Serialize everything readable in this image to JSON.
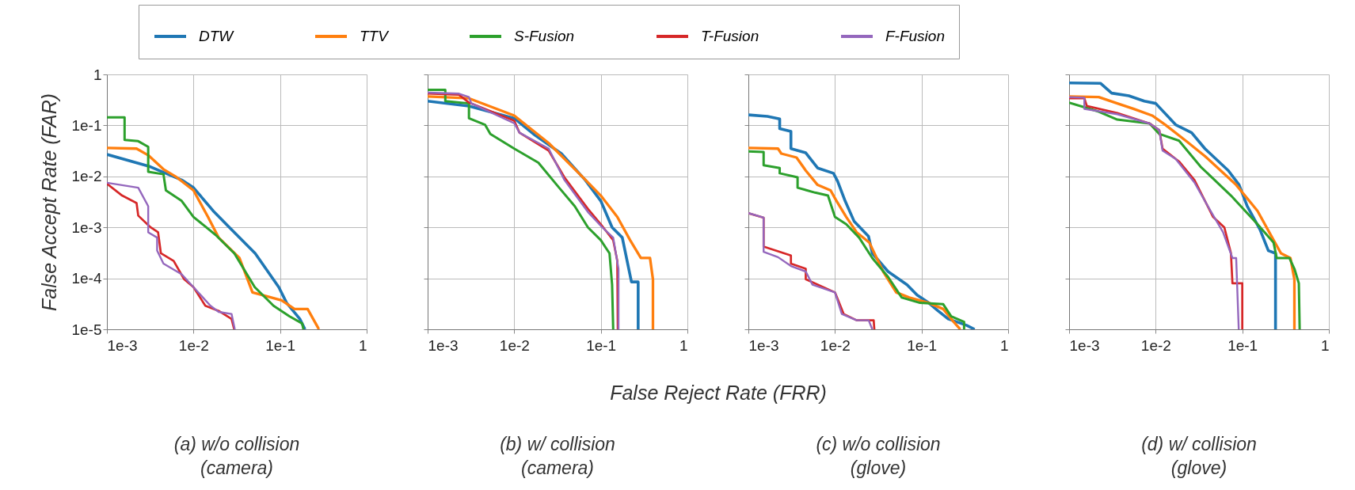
{
  "chart_data": [
    {
      "type": "line",
      "title": "(a) w/o collision\n(camera)",
      "ylabel": "False Accept Rate (FAR)",
      "legend": "top",
      "log": "xy",
      "grid": true,
      "xlim": [
        0.001,
        1
      ],
      "ylim": [
        1e-05,
        1
      ],
      "xticks": [
        {
          "value": 0.001,
          "label": "1e-3"
        },
        {
          "value": 0.01,
          "label": "1e-2"
        },
        {
          "value": 0.1,
          "label": "1e-1"
        },
        1
      ],
      "yticks": [
        {
          "value": 1e-05,
          "label": "1e-5"
        },
        {
          "value": 0.0001,
          "label": "1e-4"
        },
        {
          "value": 0.001,
          "label": "1e-3"
        },
        {
          "value": 0.01,
          "label": "1e-2"
        },
        {
          "value": 0.1,
          "label": "1e-1"
        },
        1
      ],
      "series": [
        {
          "name": "DTW",
          "color": "#1f77b4",
          "x": [
            0.001,
            0.00316,
            0.0073,
            0.01,
            0.0169,
            0.0257,
            0.0515,
            0.0966,
            0.119,
            0.169,
            0.194
          ],
          "values": [
            0.027,
            0.0155,
            0.0085,
            0.006,
            0.0021,
            0.00102,
            0.00031,
            6.7e-05,
            3.3e-05,
            1.6e-05,
            1e-05
          ]
        },
        {
          "name": "TTV",
          "color": "#ff7f0e",
          "x": [
            0.001,
            0.0022,
            0.003,
            0.0045,
            0.0064,
            0.01,
            0.0147,
            0.0195,
            0.034,
            0.048,
            0.104,
            0.147,
            0.208,
            0.275,
            0.28
          ],
          "values": [
            0.036,
            0.035,
            0.026,
            0.0138,
            0.0096,
            0.0053,
            0.0016,
            0.00063,
            0.00025,
            5.3e-05,
            3.7e-05,
            2.5e-05,
            2.5e-05,
            1.07e-05,
            1e-05
          ]
        },
        {
          "name": "S-Fusion",
          "color": "#2ca02c",
          "x": [
            0.001,
            0.0016,
            0.0016,
            0.0023,
            0.003,
            0.003,
            0.0045,
            0.0048,
            0.0073,
            0.01,
            0.018,
            0.0296,
            0.051,
            0.084,
            0.128,
            0.18,
            0.186
          ],
          "values": [
            0.144,
            0.144,
            0.052,
            0.049,
            0.038,
            0.0123,
            0.011,
            0.0053,
            0.0033,
            0.0016,
            0.00071,
            0.00031,
            6.7e-05,
            2.9e-05,
            1.8e-05,
            1.3e-05,
            1e-05
          ]
        },
        {
          "name": "T-Fusion",
          "color": "#d62728",
          "x": [
            0.001,
            0.0015,
            0.0022,
            0.0023,
            0.0032,
            0.0039,
            0.0042,
            0.0059,
            0.0078,
            0.01,
            0.0137,
            0.0195,
            0.0275,
            0.0295
          ],
          "values": [
            0.0072,
            0.0042,
            0.003,
            0.0017,
            0.001,
            0.0008,
            0.00031,
            0.00022,
            9.6e-05,
            6.7e-05,
            2.9e-05,
            2.3e-05,
            1.6e-05,
            1e-05
          ]
        },
        {
          "name": "F-Fusion",
          "color": "#9467bd",
          "x": [
            0.001,
            0.0023,
            0.003,
            0.003,
            0.0038,
            0.0038,
            0.0045,
            0.0073,
            0.01,
            0.0157,
            0.0195,
            0.0275,
            0.03
          ],
          "values": [
            0.0075,
            0.006,
            0.0026,
            0.0008,
            0.00063,
            0.00035,
            0.000195,
            0.00012,
            6.7e-05,
            2.9e-05,
            2.2e-05,
            2e-05,
            1e-05
          ]
        }
      ]
    },
    {
      "type": "line",
      "title": "(b) w/ collision\n(camera)",
      "xlabel": "False Reject Rate (FRR)",
      "tick_labels": "x",
      "log": "xy",
      "grid": true,
      "xlim": [
        0.001,
        1
      ],
      "ylim": [
        1e-05,
        1
      ],
      "xticks": [
        {
          "value": 0.001,
          "label": "1e-3"
        },
        {
          "value": 0.01,
          "label": "1e-2"
        },
        {
          "value": 0.1,
          "label": "1e-1"
        },
        1
      ],
      "yticks": [
        {
          "value": 1e-05,
          "label": null
        },
        {
          "value": 0.0001,
          "label": null
        },
        {
          "value": 0.001,
          "label": null
        },
        {
          "value": 0.01,
          "label": null
        },
        {
          "value": 0.1,
          "label": null
        },
        {
          "value": 1,
          "label": null
        }
      ],
      "series": [
        {
          "color": "#1f77b4",
          "x": [
            0.001,
            0.003,
            0.01,
            0.0174,
            0.035,
            0.066,
            0.1,
            0.135,
            0.177,
            0.226,
            0.27,
            0.27
          ],
          "values": [
            0.3,
            0.24,
            0.138,
            0.064,
            0.028,
            0.0085,
            0.0033,
            0.001,
            0.00063,
            8.5e-05,
            8.5e-05,
            1e-05
          ]
        },
        {
          "color": "#ff7f0e",
          "x": [
            0.001,
            0.003,
            0.01,
            0.025,
            0.062,
            0.1,
            0.155,
            0.218,
            0.29,
            0.37,
            0.4,
            0.4
          ],
          "values": [
            0.37,
            0.34,
            0.156,
            0.045,
            0.0096,
            0.0042,
            0.0016,
            0.00056,
            0.00025,
            0.00025,
            9.5e-05,
            1e-05
          ]
        },
        {
          "color": "#2ca02c",
          "x": [
            0.001,
            0.0016,
            0.0016,
            0.003,
            0.003,
            0.0046,
            0.0053,
            0.01,
            0.019,
            0.033,
            0.05,
            0.071,
            0.1,
            0.126,
            0.135,
            0.139
          ],
          "values": [
            0.5,
            0.5,
            0.3,
            0.27,
            0.138,
            0.103,
            0.068,
            0.035,
            0.0186,
            0.006,
            0.0026,
            0.001,
            0.00056,
            0.00031,
            7.5e-05,
            1e-05
          ]
        },
        {
          "color": "#d62728",
          "x": [
            0.001,
            0.0023,
            0.003,
            0.01,
            0.0115,
            0.025,
            0.038,
            0.071,
            0.1,
            0.139,
            0.155,
            0.157
          ],
          "values": [
            0.42,
            0.4,
            0.28,
            0.123,
            0.072,
            0.032,
            0.0096,
            0.0023,
            0.00115,
            0.00056,
            0.00022,
            1e-05
          ]
        },
        {
          "color": "#9467bd",
          "x": [
            0.001,
            0.0023,
            0.003,
            0.0032,
            0.01,
            0.0115,
            0.025,
            0.038,
            0.071,
            0.104,
            0.139,
            0.16,
            0.16
          ],
          "values": [
            0.44,
            0.42,
            0.36,
            0.27,
            0.11,
            0.072,
            0.035,
            0.0085,
            0.002,
            0.001,
            0.00063,
            0.000154,
            1e-05
          ]
        }
      ]
    },
    {
      "type": "line",
      "title": "(c) w/o collision\n(glove)",
      "tick_labels": "x",
      "log": "xy",
      "grid": true,
      "xlim": [
        0.001,
        1
      ],
      "ylim": [
        1e-05,
        1
      ],
      "xticks": [
        {
          "value": 0.001,
          "label": "1e-3"
        },
        {
          "value": 0.01,
          "label": "1e-2"
        },
        {
          "value": 0.1,
          "label": "1e-1"
        },
        1
      ],
      "yticks": [
        {
          "value": 1e-05,
          "label": null
        },
        {
          "value": 0.0001,
          "label": null
        },
        {
          "value": 0.001,
          "label": null
        },
        {
          "value": 0.01,
          "label": null
        },
        {
          "value": 0.1,
          "label": null
        },
        {
          "value": 1,
          "label": null
        }
      ],
      "series": [
        {
          "color": "#1f77b4",
          "x": [
            0.001,
            0.00166,
            0.0023,
            0.0023,
            0.0031,
            0.0031,
            0.0046,
            0.0063,
            0.0096,
            0.0107,
            0.0131,
            0.0167,
            0.0244,
            0.027,
            0.041,
            0.068,
            0.089,
            0.121,
            0.155,
            0.203,
            0.33,
            0.41
          ],
          "values": [
            0.161,
            0.15,
            0.134,
            0.086,
            0.076,
            0.035,
            0.029,
            0.0146,
            0.0115,
            0.0081,
            0.0033,
            0.0013,
            0.00067,
            0.00031,
            0.000136,
            7.5e-05,
            4.7e-05,
            3.3e-05,
            2.3e-05,
            1.6e-05,
            1.2e-05,
            1e-05
          ]
        },
        {
          "color": "#ff7f0e",
          "x": [
            0.001,
            0.0022,
            0.0024,
            0.0036,
            0.0046,
            0.0063,
            0.0089,
            0.0102,
            0.0135,
            0.0178,
            0.025,
            0.036,
            0.051,
            0.072,
            0.121,
            0.178,
            0.235,
            0.28
          ],
          "values": [
            0.036,
            0.035,
            0.028,
            0.0234,
            0.013,
            0.0068,
            0.0053,
            0.0035,
            0.0016,
            0.0008,
            0.0005,
            0.000136,
            5.3e-05,
            4.2e-05,
            3.3e-05,
            2.5e-05,
            1.4e-05,
            1e-05
          ]
        },
        {
          "color": "#2ca02c",
          "x": [
            0.001,
            0.0015,
            0.0015,
            0.0023,
            0.0023,
            0.0037,
            0.0037,
            0.0059,
            0.0083,
            0.01,
            0.0135,
            0.019,
            0.027,
            0.041,
            0.059,
            0.096,
            0.178,
            0.22,
            0.31,
            0.31
          ],
          "values": [
            0.031,
            0.03,
            0.0165,
            0.0146,
            0.0115,
            0.0096,
            0.006,
            0.0048,
            0.0042,
            0.0016,
            0.00115,
            0.00063,
            0.00025,
            0.000107,
            4.2e-05,
            3.3e-05,
            3.1e-05,
            1.8e-05,
            1.4e-05,
            1e-05
          ]
        },
        {
          "color": "#d62728",
          "x": [
            0.001,
            0.0015,
            0.0015,
            0.0031,
            0.0031,
            0.0046,
            0.0046,
            0.01,
            0.0126,
            0.0178,
            0.028,
            0.0285
          ],
          "values": [
            0.0019,
            0.00155,
            0.00042,
            0.00028,
            0.000195,
            0.000154,
            9.6e-05,
            5.3e-05,
            2e-05,
            1.5e-05,
            1.5e-05,
            1e-05
          ]
        },
        {
          "color": "#9467bd",
          "x": [
            0.001,
            0.0015,
            0.0015,
            0.0022,
            0.0031,
            0.0046,
            0.0055,
            0.01,
            0.012,
            0.0178,
            0.0245,
            0.027
          ],
          "values": [
            0.0019,
            0.00155,
            0.00033,
            0.00026,
            0.000174,
            0.000136,
            7.5e-05,
            5.3e-05,
            2e-05,
            1.5e-05,
            1.5e-05,
            1e-05
          ]
        }
      ]
    },
    {
      "type": "line",
      "title": "(d) w/ collision\n(glove)",
      "tick_labels": "x",
      "log": "xy",
      "grid": true,
      "xlim": [
        0.001,
        1
      ],
      "ylim": [
        1e-05,
        1
      ],
      "xticks": [
        {
          "value": 0.001,
          "label": "1e-3"
        },
        {
          "value": 0.01,
          "label": "1e-2"
        },
        {
          "value": 0.1,
          "label": "1e-1"
        },
        1
      ],
      "yticks": [
        {
          "value": 1e-05,
          "label": null
        },
        {
          "value": 0.0001,
          "label": null
        },
        {
          "value": 0.001,
          "label": null
        },
        {
          "value": 0.01,
          "label": null
        },
        {
          "value": 0.1,
          "label": null
        },
        {
          "value": 1,
          "label": null
        }
      ],
      "series": [
        {
          "color": "#1f77b4",
          "x": [
            0.001,
            0.0023,
            0.0031,
            0.0049,
            0.0074,
            0.01,
            0.017,
            0.026,
            0.037,
            0.069,
            0.092,
            0.114,
            0.16,
            0.2,
            0.242,
            0.242
          ],
          "values": [
            0.68,
            0.67,
            0.43,
            0.38,
            0.3,
            0.27,
            0.103,
            0.072,
            0.035,
            0.013,
            0.0068,
            0.0026,
            0.00091,
            0.00035,
            0.00031,
            1e-05
          ]
        },
        {
          "color": "#ff7f0e",
          "x": [
            0.001,
            0.0022,
            0.0036,
            0.0056,
            0.0091,
            0.0129,
            0.023,
            0.037,
            0.085,
            0.15,
            0.23,
            0.28,
            0.36,
            0.4,
            0.4
          ],
          "values": [
            0.37,
            0.36,
            0.27,
            0.21,
            0.156,
            0.103,
            0.048,
            0.025,
            0.0068,
            0.0021,
            0.00056,
            0.00031,
            0.00025,
            9.5e-05,
            1e-05
          ]
        },
        {
          "color": "#2ca02c",
          "x": [
            0.001,
            0.0022,
            0.0036,
            0.0085,
            0.011,
            0.0186,
            0.033,
            0.074,
            0.15,
            0.23,
            0.25,
            0.35,
            0.4,
            0.45,
            0.46
          ],
          "values": [
            0.28,
            0.186,
            0.13,
            0.109,
            0.068,
            0.05,
            0.0155,
            0.0042,
            0.00115,
            0.0005,
            0.00025,
            0.00025,
            0.000154,
            8e-05,
            1e-05
          ]
        },
        {
          "color": "#d62728",
          "x": [
            0.001,
            0.0015,
            0.0016,
            0.0036,
            0.0085,
            0.011,
            0.012,
            0.0186,
            0.028,
            0.046,
            0.062,
            0.074,
            0.077,
            0.1,
            0.1
          ],
          "values": [
            0.34,
            0.34,
            0.24,
            0.175,
            0.109,
            0.081,
            0.035,
            0.0196,
            0.0085,
            0.0016,
            0.001,
            0.00031,
            8e-05,
            8e-05,
            1e-05
          ]
        },
        {
          "color": "#9467bd",
          "x": [
            0.001,
            0.0015,
            0.0015,
            0.0036,
            0.0085,
            0.011,
            0.012,
            0.017,
            0.028,
            0.043,
            0.06,
            0.077,
            0.085,
            0.091
          ],
          "values": [
            0.36,
            0.35,
            0.21,
            0.166,
            0.109,
            0.081,
            0.032,
            0.022,
            0.0076,
            0.0021,
            0.0008,
            0.00025,
            0.00025,
            1e-05
          ]
        }
      ]
    }
  ]
}
